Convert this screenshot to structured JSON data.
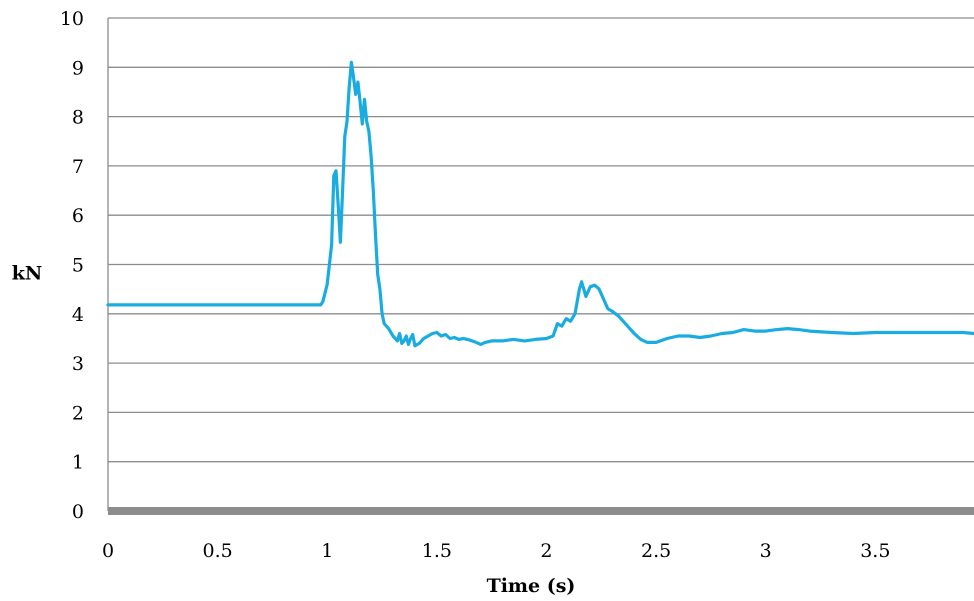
{
  "chart_data": {
    "type": "line",
    "xlabel": "Time (s)",
    "ylabel": "kN",
    "xlim": [
      0,
      3.95
    ],
    "ylim": [
      0,
      10
    ],
    "x_ticks": [
      "0",
      "0.5",
      "1",
      "1.5",
      "2",
      "2.5",
      "3",
      "3.5"
    ],
    "y_ticks": [
      "0",
      "1",
      "2",
      "3",
      "4",
      "5",
      "6",
      "7",
      "8",
      "9",
      "10"
    ],
    "grid": true,
    "legend": "none",
    "series": [
      {
        "color": "#1aace1",
        "x": [
          0,
          0.2,
          0.4,
          0.6,
          0.8,
          0.97,
          0.98,
          1.0,
          1.02,
          1.03,
          1.04,
          1.05,
          1.06,
          1.07,
          1.08,
          1.09,
          1.1,
          1.11,
          1.12,
          1.13,
          1.14,
          1.15,
          1.16,
          1.17,
          1.18,
          1.19,
          1.2,
          1.21,
          1.22,
          1.23,
          1.24,
          1.25,
          1.26,
          1.27,
          1.28,
          1.3,
          1.32,
          1.33,
          1.34,
          1.35,
          1.36,
          1.37,
          1.38,
          1.39,
          1.4,
          1.42,
          1.44,
          1.46,
          1.48,
          1.5,
          1.52,
          1.54,
          1.56,
          1.58,
          1.6,
          1.62,
          1.64,
          1.66,
          1.68,
          1.7,
          1.72,
          1.75,
          1.8,
          1.85,
          1.9,
          1.95,
          2.0,
          2.03,
          2.05,
          2.07,
          2.09,
          2.11,
          2.13,
          2.15,
          2.16,
          2.17,
          2.18,
          2.19,
          2.2,
          2.22,
          2.24,
          2.26,
          2.28,
          2.3,
          2.33,
          2.36,
          2.4,
          2.43,
          2.46,
          2.5,
          2.55,
          2.6,
          2.65,
          2.7,
          2.75,
          2.8,
          2.85,
          2.9,
          2.95,
          3.0,
          3.05,
          3.1,
          3.15,
          3.2,
          3.3,
          3.4,
          3.5,
          3.6,
          3.7,
          3.8,
          3.9,
          3.95
        ],
        "y": [
          4.18,
          4.18,
          4.18,
          4.18,
          4.18,
          4.18,
          4.25,
          4.6,
          5.4,
          6.8,
          6.9,
          6.2,
          5.45,
          6.5,
          7.6,
          7.9,
          8.6,
          9.1,
          8.8,
          8.45,
          8.7,
          8.3,
          7.85,
          8.35,
          7.9,
          7.7,
          7.2,
          6.5,
          5.6,
          4.8,
          4.5,
          4.0,
          3.8,
          3.75,
          3.7,
          3.55,
          3.45,
          3.6,
          3.4,
          3.45,
          3.55,
          3.38,
          3.5,
          3.58,
          3.35,
          3.4,
          3.5,
          3.55,
          3.6,
          3.62,
          3.55,
          3.58,
          3.5,
          3.52,
          3.48,
          3.5,
          3.48,
          3.45,
          3.42,
          3.38,
          3.42,
          3.45,
          3.45,
          3.48,
          3.45,
          3.48,
          3.5,
          3.55,
          3.8,
          3.75,
          3.9,
          3.85,
          4.0,
          4.5,
          4.65,
          4.5,
          4.35,
          4.45,
          4.55,
          4.58,
          4.5,
          4.3,
          4.1,
          4.05,
          3.95,
          3.8,
          3.6,
          3.48,
          3.42,
          3.42,
          3.5,
          3.55,
          3.55,
          3.52,
          3.55,
          3.6,
          3.62,
          3.68,
          3.65,
          3.65,
          3.68,
          3.7,
          3.68,
          3.65,
          3.62,
          3.6,
          3.62,
          3.62,
          3.62,
          3.62,
          3.62,
          3.6
        ]
      }
    ]
  }
}
